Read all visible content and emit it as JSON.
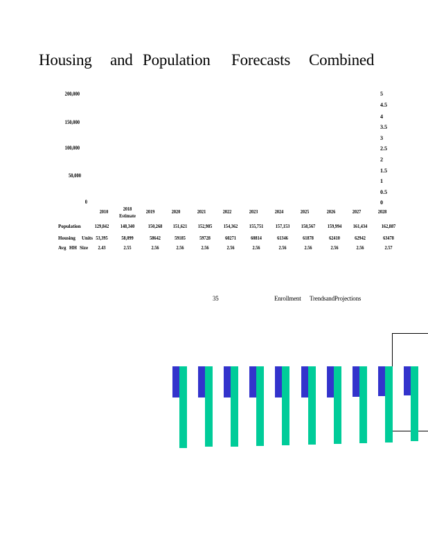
{
  "title_words": [
    "Housing",
    "and",
    "Population",
    "Forecasts",
    "Combined"
  ],
  "chart_data": {
    "type": "table",
    "left_axis_ticks": [
      "200,000",
      "150,000",
      "100,000",
      "50,000",
      "0"
    ],
    "right_axis_ticks": [
      "5",
      "4.5",
      "4",
      "3.5",
      "3",
      "2.5",
      "2",
      "1.5",
      "1",
      "0.5",
      "0"
    ],
    "year_labels": [
      "2010",
      "2019",
      "2020",
      "2021",
      "2022",
      "2023",
      "2024",
      "2025",
      "2026",
      "2027",
      "2028"
    ],
    "estimate_year": "2018",
    "estimate_note": "Estimate",
    "rows": [
      {
        "label_parts": [
          "Population"
        ],
        "values": [
          "129,842",
          "148,340",
          "150,268",
          "151,621",
          "152,985",
          "154,362",
          "155,751",
          "157,153",
          "158,567",
          "159,994",
          "161,434",
          "162,887"
        ]
      },
      {
        "label_parts": [
          "Housing",
          "Units"
        ],
        "values": [
          "53,395",
          "58,099",
          "58642",
          "59185",
          "59728",
          "60271",
          "60814",
          "61346",
          "61878",
          "62410",
          "62942",
          "63478"
        ]
      },
      {
        "label_parts": [
          "Avg",
          "HH",
          "Size"
        ],
        "values": [
          "2.43",
          "2.55",
          "2.56",
          "2.56",
          "2.56",
          "2.56",
          "2.56",
          "2.56",
          "2.56",
          "2.56",
          "2.56",
          "2.57"
        ]
      }
    ]
  },
  "enrollment": {
    "number": "35",
    "caption_words": [
      "Enrollment",
      "TrendsandProjections"
    ]
  },
  "enrollment_bars": {
    "blue_units": [
      45,
      45,
      45,
      45,
      45,
      45,
      45,
      44,
      43,
      42
    ],
    "green_units": [
      118,
      116,
      116,
      115,
      114,
      113,
      112,
      111,
      110,
      108
    ],
    "colors": {
      "blue": "#3333cc",
      "green": "#00cc99"
    }
  }
}
